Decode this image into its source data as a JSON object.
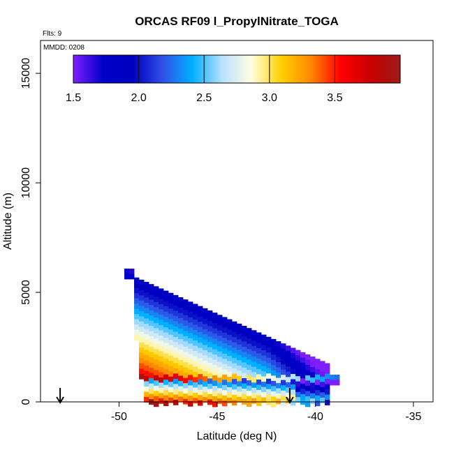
{
  "chart_data": {
    "type": "heatmap",
    "title": "ORCAS RF09 l_PropylNitrate_TOGA",
    "annotations": {
      "flights": "Flts: 9",
      "date": "MMDD: 0208"
    },
    "xlabel": "Latitude (deg N)",
    "ylabel": "Altitude (m)",
    "xlim": [
      -54,
      -34
    ],
    "ylim": [
      0,
      16500
    ],
    "x_ticks": [
      -50,
      -45,
      -40,
      -35
    ],
    "x_tick_labels": [
      "-50",
      "-45",
      "-40",
      "-35"
    ],
    "y_ticks": [
      0,
      5000,
      10000,
      15000
    ],
    "y_tick_labels": [
      "0",
      "5000",
      "10000",
      "15000"
    ],
    "colorbar": {
      "range": [
        1.5,
        4.0
      ],
      "ticks": [
        1.5,
        2.0,
        2.5,
        3.0,
        3.5
      ],
      "tick_labels": [
        "1.5",
        "2.0",
        "2.5",
        "3.0",
        "3.5"
      ],
      "colors": [
        "#7f1fff",
        "#0000c8",
        "#0000c0",
        "#3050e6",
        "#00b0ff",
        "#b8e0ff",
        "#ffffe0",
        "#ffd000",
        "#ff8800",
        "#ff0000",
        "#c80000",
        "#9e1a1a"
      ]
    },
    "profile_markers_latitude": [
      -53.0,
      -41.3
    ],
    "grid": false,
    "legend": "colorbar top"
  }
}
